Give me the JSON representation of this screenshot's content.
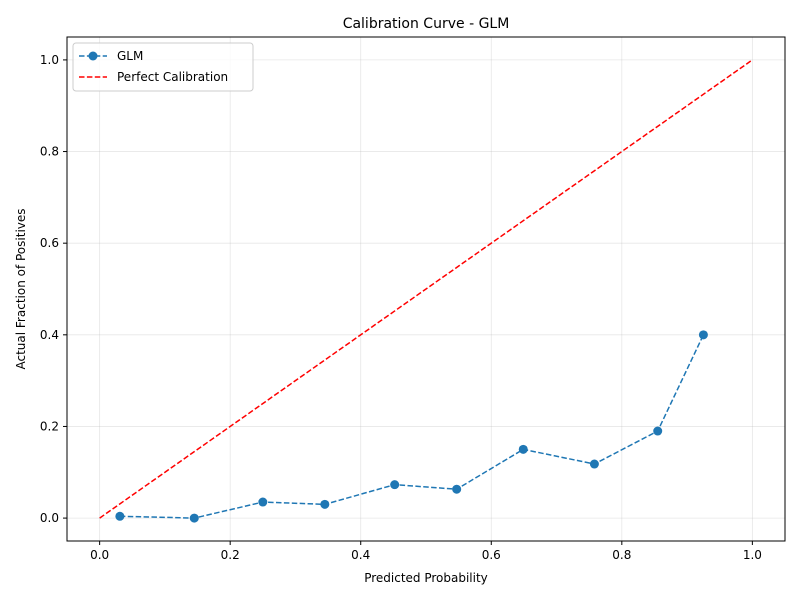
{
  "chart_data": {
    "type": "line",
    "title": "Calibration Curve - GLM",
    "xlabel": "Predicted Probability",
    "ylabel": "Actual Fraction of Positives",
    "xlim": [
      -0.05,
      1.05
    ],
    "ylim": [
      -0.05,
      1.05
    ],
    "xticks": [
      0.0,
      0.2,
      0.4,
      0.6,
      0.8,
      1.0
    ],
    "yticks": [
      0.0,
      0.2,
      0.4,
      0.6,
      0.8,
      1.0
    ],
    "xtick_labels": [
      "0.0",
      "0.2",
      "0.4",
      "0.6",
      "0.8",
      "1.0"
    ],
    "ytick_labels": [
      "0.0",
      "0.2",
      "0.4",
      "0.6",
      "0.8",
      "1.0"
    ],
    "grid": true,
    "legend_position": "top-left",
    "series": [
      {
        "name": "GLM",
        "style": "dashed-with-markers",
        "color": "#1f77b4",
        "x": [
          0.031,
          0.145,
          0.25,
          0.345,
          0.452,
          0.547,
          0.649,
          0.758,
          0.855,
          0.925
        ],
        "y": [
          0.004,
          0.0,
          0.035,
          0.03,
          0.073,
          0.063,
          0.15,
          0.118,
          0.19,
          0.4
        ]
      },
      {
        "name": "Perfect Calibration",
        "style": "dashed",
        "color": "#ff0000",
        "x": [
          0.0,
          1.0
        ],
        "y": [
          0.0,
          1.0
        ]
      }
    ]
  }
}
